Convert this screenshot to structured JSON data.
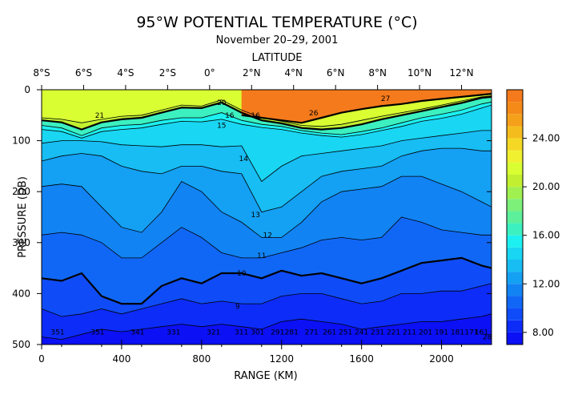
{
  "chart_data": {
    "type": "heatmap",
    "title": "95°W POTENTIAL TEMPERATURE (°C)",
    "subtitle": "November 20–29, 2001",
    "top_axis_label": "LATITUDE",
    "xlabel": "RANGE (KM)",
    "ylabel": "PRESSURE (DB)",
    "x_range_km": [
      0,
      2250
    ],
    "y_range_db": [
      0,
      500
    ],
    "x_ticks": [
      0,
      400,
      800,
      1200,
      1600,
      2000
    ],
    "y_ticks": [
      0,
      100,
      200,
      300,
      400,
      500
    ],
    "latitude_ticks": [
      {
        "label": "8°S",
        "km": 0
      },
      {
        "label": "6°S",
        "km": 210
      },
      {
        "label": "4°S",
        "km": 420
      },
      {
        "label": "2°S",
        "km": 630
      },
      {
        "label": "0°",
        "km": 840
      },
      {
        "label": "2°N",
        "km": 1050
      },
      {
        "label": "4°N",
        "km": 1260
      },
      {
        "label": "6°N",
        "km": 1470
      },
      {
        "label": "8°N",
        "km": 1680
      },
      {
        "label": "10°N",
        "km": 1890
      },
      {
        "label": "12°N",
        "km": 2100
      }
    ],
    "colorbar": {
      "min": 7.0,
      "max": 28.0,
      "step": 1.0,
      "tick_labels": [
        "8.00",
        "12.00",
        "16.00",
        "20.00",
        "24.00"
      ],
      "tick_values": [
        8,
        12,
        16,
        20,
        24
      ]
    },
    "color_levels": [
      {
        "t": 7,
        "color": "#0b10f5"
      },
      {
        "t": 8,
        "color": "#0d2cf8"
      },
      {
        "t": 9,
        "color": "#0f4cf8"
      },
      {
        "t": 10,
        "color": "#1167f5"
      },
      {
        "t": 11,
        "color": "#1283f3"
      },
      {
        "t": 12,
        "color": "#14a0f3"
      },
      {
        "t": 13,
        "color": "#17bdf3"
      },
      {
        "t": 14,
        "color": "#19d6f3"
      },
      {
        "t": 15,
        "color": "#1cf0f0"
      },
      {
        "t": 16,
        "color": "#3cf0c0"
      },
      {
        "t": 17,
        "color": "#5cf09a"
      },
      {
        "t": 18,
        "color": "#7cf078"
      },
      {
        "t": 19,
        "color": "#a0f050"
      },
      {
        "t": 20,
        "color": "#c2f030"
      },
      {
        "t": 21,
        "color": "#d9ff33"
      },
      {
        "t": 22,
        "color": "#f0f030"
      },
      {
        "t": 23,
        "color": "#f5d825"
      },
      {
        "t": 24,
        "color": "#f5bc1e"
      },
      {
        "t": 25,
        "color": "#f5a01a"
      },
      {
        "t": 26,
        "color": "#f58a19"
      },
      {
        "t": 27,
        "color": "#f57a1c"
      },
      {
        "t": 28,
        "color": "#f06a20"
      }
    ],
    "depth_profile_km": [
      0,
      100,
      200,
      300,
      400,
      500,
      600,
      700,
      800,
      900,
      1000,
      1100,
      1200,
      1300,
      1400,
      1500,
      1600,
      1700,
      1800,
      1900,
      2000,
      2100,
      2200,
      2250
    ],
    "isotherms": [
      {
        "t": 26,
        "bold": true,
        "depth": [
          null,
          null,
          null,
          null,
          null,
          null,
          null,
          null,
          null,
          null,
          50,
          55,
          60,
          65,
          55,
          45,
          38,
          32,
          28,
          22,
          18,
          14,
          10,
          8
        ]
      },
      {
        "t": 21,
        "bold": false,
        "depth": [
          55,
          58,
          65,
          58,
          52,
          50,
          40,
          30,
          32,
          20,
          40,
          55,
          62,
          70,
          72,
          68,
          60,
          52,
          45,
          38,
          30,
          22,
          14,
          12
        ]
      },
      {
        "t": 20,
        "bold": true,
        "depth": [
          60,
          64,
          78,
          64,
          58,
          55,
          45,
          35,
          36,
          25,
          45,
          60,
          66,
          75,
          78,
          75,
          68,
          58,
          50,
          42,
          34,
          26,
          16,
          14
        ]
      },
      {
        "t": 16,
        "bold": false,
        "depth": [
          70,
          75,
          90,
          75,
          70,
          68,
          60,
          55,
          55,
          45,
          60,
          68,
          72,
          80,
          85,
          88,
          82,
          75,
          65,
          55,
          48,
          40,
          28,
          24
        ]
      },
      {
        "t": 15,
        "bold": false,
        "depth": [
          78,
          82,
          95,
          82,
          78,
          75,
          68,
          62,
          63,
          58,
          68,
          74,
          78,
          85,
          90,
          93,
          88,
          80,
          72,
          62,
          56,
          48,
          36,
          30
        ]
      },
      {
        "t": 14,
        "bold": false,
        "depth": [
          105,
          100,
          100,
          102,
          108,
          110,
          112,
          108,
          108,
          112,
          110,
          180,
          150,
          130,
          125,
          120,
          115,
          110,
          100,
          95,
          90,
          85,
          80,
          80
        ]
      },
      {
        "t": 13,
        "bold": false,
        "depth": [
          140,
          130,
          125,
          130,
          150,
          160,
          165,
          150,
          150,
          160,
          165,
          240,
          230,
          200,
          170,
          160,
          155,
          150,
          130,
          120,
          115,
          115,
          120,
          120
        ]
      },
      {
        "t": 12,
        "bold": false,
        "depth": [
          190,
          185,
          190,
          230,
          270,
          280,
          240,
          180,
          200,
          240,
          260,
          290,
          290,
          260,
          220,
          200,
          195,
          190,
          170,
          170,
          185,
          200,
          220,
          230
        ]
      },
      {
        "t": 11,
        "bold": false,
        "depth": [
          285,
          280,
          285,
          300,
          330,
          330,
          300,
          270,
          290,
          320,
          330,
          330,
          320,
          310,
          295,
          290,
          295,
          290,
          250,
          260,
          275,
          280,
          285,
          285
        ]
      },
      {
        "t": 10,
        "bold": true,
        "depth": [
          370,
          375,
          360,
          405,
          420,
          420,
          385,
          370,
          380,
          360,
          360,
          370,
          355,
          365,
          360,
          370,
          380,
          370,
          355,
          340,
          335,
          330,
          345,
          350
        ]
      },
      {
        "t": 9,
        "bold": false,
        "depth": [
          430,
          445,
          440,
          430,
          440,
          430,
          420,
          410,
          420,
          415,
          420,
          420,
          405,
          400,
          400,
          410,
          420,
          415,
          400,
          400,
          395,
          395,
          385,
          380
        ]
      },
      {
        "t": 8,
        "bold": false,
        "depth": [
          485,
          490,
          480,
          470,
          475,
          470,
          465,
          460,
          465,
          460,
          465,
          470,
          455,
          450,
          455,
          460,
          470,
          465,
          460,
          455,
          455,
          450,
          445,
          440
        ]
      }
    ],
    "inline_labels": [
      {
        "text": "21",
        "km": 290,
        "db": 55
      },
      {
        "text": "20",
        "km": 900,
        "db": 30
      },
      {
        "text": "16",
        "km": 1070,
        "db": 55
      },
      {
        "text": "16",
        "km": 940,
        "db": 55
      },
      {
        "text": "15",
        "km": 900,
        "db": 75
      },
      {
        "text": "14",
        "km": 1010,
        "db": 140
      },
      {
        "text": "13",
        "km": 1070,
        "db": 250
      },
      {
        "text": "12",
        "km": 1130,
        "db": 290
      },
      {
        "text": "11",
        "km": 1100,
        "db": 330
      },
      {
        "text": "10",
        "km": 1000,
        "db": 365
      },
      {
        "text": "9",
        "km": 980,
        "db": 430
      },
      {
        "text": "26",
        "km": 1360,
        "db": 50
      },
      {
        "text": "27",
        "km": 1720,
        "db": 22
      },
      {
        "text": "351",
        "km": 80,
        "db": 480
      },
      {
        "text": "351",
        "km": 280,
        "db": 480
      },
      {
        "text": "341",
        "km": 480,
        "db": 480
      },
      {
        "text": "331",
        "km": 660,
        "db": 480
      },
      {
        "text": "321",
        "km": 860,
        "db": 480
      },
      {
        "text": "311",
        "km": 1000,
        "db": 480
      },
      {
        "text": "301",
        "km": 1080,
        "db": 480
      },
      {
        "text": "291",
        "km": 1180,
        "db": 480
      },
      {
        "text": "281",
        "km": 1250,
        "db": 480
      },
      {
        "text": "271",
        "km": 1350,
        "db": 480
      },
      {
        "text": "261",
        "km": 1440,
        "db": 480
      },
      {
        "text": "251",
        "km": 1520,
        "db": 480
      },
      {
        "text": "241",
        "km": 1600,
        "db": 480
      },
      {
        "text": "231",
        "km": 1680,
        "db": 480
      },
      {
        "text": "221",
        "km": 1760,
        "db": 480
      },
      {
        "text": "211",
        "km": 1840,
        "db": 480
      },
      {
        "text": "201",
        "km": 1920,
        "db": 480
      },
      {
        "text": "191",
        "km": 2000,
        "db": 480
      },
      {
        "text": "181",
        "km": 2080,
        "db": 480
      },
      {
        "text": "171",
        "km": 2150,
        "db": 480
      },
      {
        "text": "161",
        "km": 2200,
        "db": 480
      },
      {
        "text": "281",
        "km": 2240,
        "db": 490
      }
    ],
    "surface_regions": [
      {
        "t": 21.5,
        "km": [
          0,
          2250
        ],
        "top_db": 0
      }
    ],
    "warm_pool": [
      {
        "t": 27,
        "depth_top": [
          null,
          null,
          null,
          null,
          null,
          null,
          null,
          null,
          null,
          null,
          0,
          0,
          0,
          0,
          0,
          0,
          0,
          0,
          0,
          0,
          0,
          0,
          0,
          0
        ],
        "depth_bottom": [
          null,
          null,
          null,
          null,
          null,
          null,
          null,
          null,
          null,
          null,
          50,
          55,
          60,
          65,
          55,
          45,
          38,
          32,
          28,
          22,
          18,
          14,
          10,
          8
        ]
      }
    ]
  },
  "labels": {
    "title": "95°W POTENTIAL TEMPERATURE (°C)",
    "subtitle": "November 20–29, 2001",
    "latitude": "LATITUDE",
    "xlabel": "RANGE (KM)",
    "ylabel": "PRESSURE (DB)"
  }
}
